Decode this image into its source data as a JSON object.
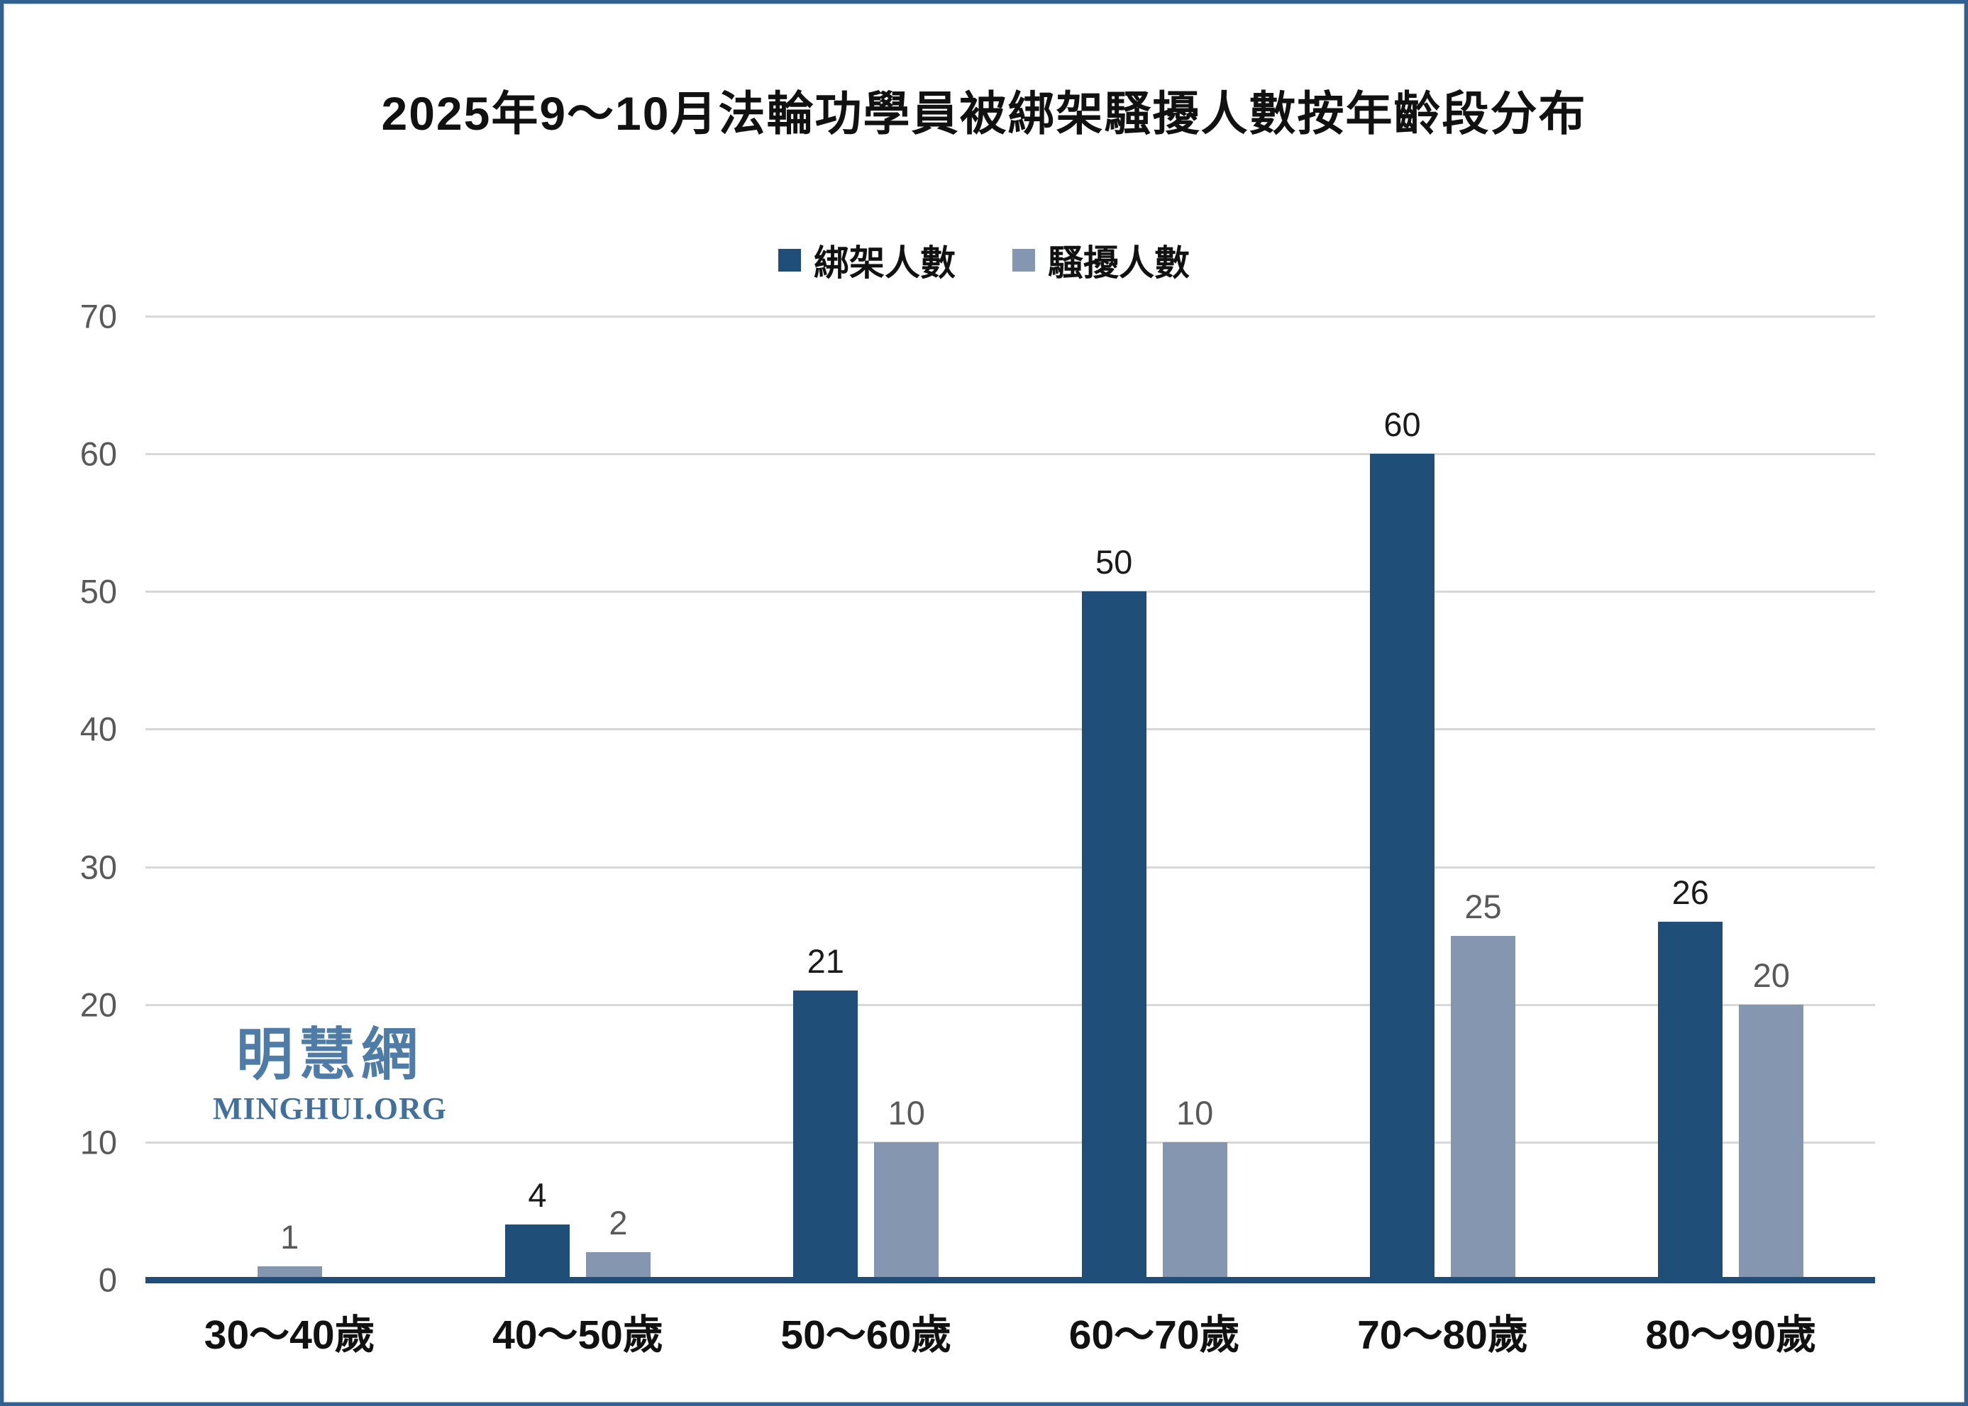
{
  "title": "2025年9～10月法輪功學員被綁架騷擾人數按年齡段分布",
  "legend": [
    {
      "label": "綁架人數",
      "color": "#1F4E79"
    },
    {
      "label": "騷擾人數",
      "color": "#8496B0"
    }
  ],
  "watermark": {
    "cjk": "明慧網",
    "latin": "MINGHUI.ORG"
  },
  "colors": {
    "kidnap_series": "#1F4E79",
    "harass_series": "#8496B0",
    "axis_line": "#1F4E79",
    "gridline": "#D8D8D8",
    "tick_label": "#595959",
    "kidnap_value_label": "#1A1A1A",
    "harass_value_label": "#595959",
    "frame_border": "#31618F",
    "watermark_blue": "#4E7CA6"
  },
  "chart_data": {
    "type": "bar",
    "title": "2025年9～10月法輪功學員被綁架騷擾人數按年齡段分布",
    "categories": [
      "30～40歲",
      "40～50歲",
      "50～60歲",
      "60～70歲",
      "70～80歲",
      "80～90歲"
    ],
    "series": [
      {
        "name": "綁架人數",
        "color": "#1F4E79",
        "label_color": "#1A1A1A",
        "values": [
          0,
          4,
          21,
          50,
          60,
          26
        ]
      },
      {
        "name": "騷擾人數",
        "color": "#8496B0",
        "label_color": "#595959",
        "values": [
          1,
          2,
          10,
          10,
          25,
          20
        ]
      }
    ],
    "xlabel": "",
    "ylabel": "",
    "ylim": [
      0,
      70
    ],
    "yticks": [
      0,
      10,
      20,
      30,
      40,
      50,
      60,
      70
    ],
    "grid": "horizontal",
    "legend_position": "top-center",
    "data_labels": true,
    "zero_values_hidden": true
  }
}
